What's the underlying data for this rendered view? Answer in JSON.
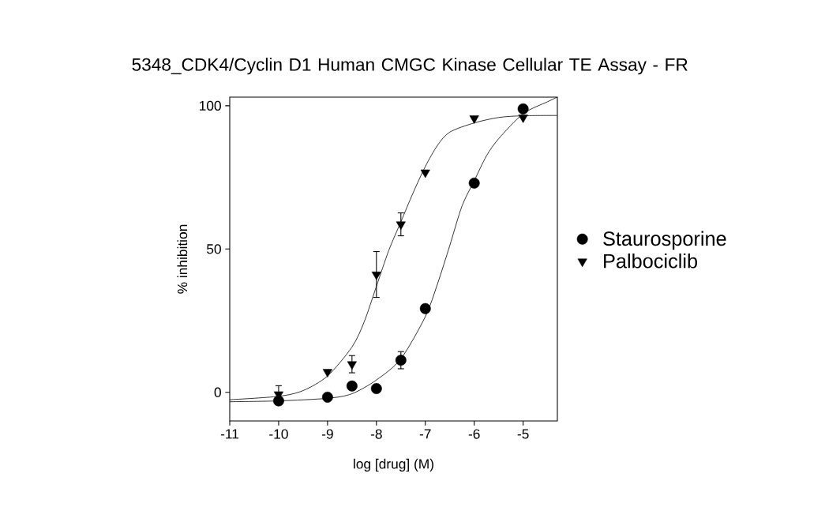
{
  "chart_data": {
    "type": "scatter",
    "title": "5348_CDK4/Cyclin D1 Human CMGC Kinase Cellular TE Assay - FR",
    "xlabel": "log [drug] (M)",
    "ylabel": "% inhibition",
    "xlim": [
      -11,
      -4.3
    ],
    "ylim": [
      -10,
      103
    ],
    "xticks": [
      -11,
      -10,
      -9,
      -8,
      -7,
      -6,
      -5
    ],
    "yticks": [
      0,
      50,
      100
    ],
    "legend": "right",
    "series": [
      {
        "name": "Staurosporine",
        "marker": "circle",
        "color": "#000000",
        "x": [
          -10,
          -9,
          -8.5,
          -8,
          -7.5,
          -7,
          -6,
          -5
        ],
        "values": [
          -3,
          -1.7,
          2.2,
          1.3,
          11.2,
          29.2,
          73,
          98.9
        ],
        "errors": [
          null,
          null,
          null,
          null,
          3,
          null,
          null,
          null
        ]
      },
      {
        "name": "Palbociclib",
        "marker": "triangle",
        "color": "#000000",
        "x": [
          -10,
          -9,
          -8.5,
          -8,
          -7.5,
          -7,
          -6,
          -5
        ],
        "values": [
          -0.7,
          7.1,
          9.8,
          41.1,
          58.6,
          76.7,
          95.6,
          95.9
        ],
        "errors": [
          3,
          null,
          3,
          8,
          4,
          null,
          null,
          null
        ]
      },
      {
        "type": "line",
        "color": "#000000",
        "x": [
          -11,
          -10,
          -9,
          -8.5,
          -8,
          -7.5,
          -7,
          -6.75,
          -6.5,
          -6.25,
          -6,
          -5.75,
          -5.5,
          -5,
          -4.5,
          -4.3
        ],
        "values": [
          -3.3,
          -3,
          -2.1,
          -0.5,
          4.3,
          11.7,
          26.4,
          37.9,
          51.2,
          65,
          73.8,
          82.5,
          88.5,
          97.2,
          101.4,
          103
        ]
      },
      {
        "type": "line",
        "color": "#000000",
        "x": [
          -11,
          -10,
          -9.5,
          -9,
          -8.5,
          -8.25,
          -8,
          -7.75,
          -7.5,
          -7.25,
          -7,
          -6.75,
          -6.5,
          -6,
          -5.5,
          -5,
          -4.3
        ],
        "values": [
          -2.6,
          -1.4,
          0.6,
          5.7,
          15.8,
          24.6,
          37,
          49.4,
          59.5,
          69.6,
          78.8,
          86.2,
          90.8,
          94,
          95.9,
          96.5,
          96.6
        ]
      }
    ]
  }
}
